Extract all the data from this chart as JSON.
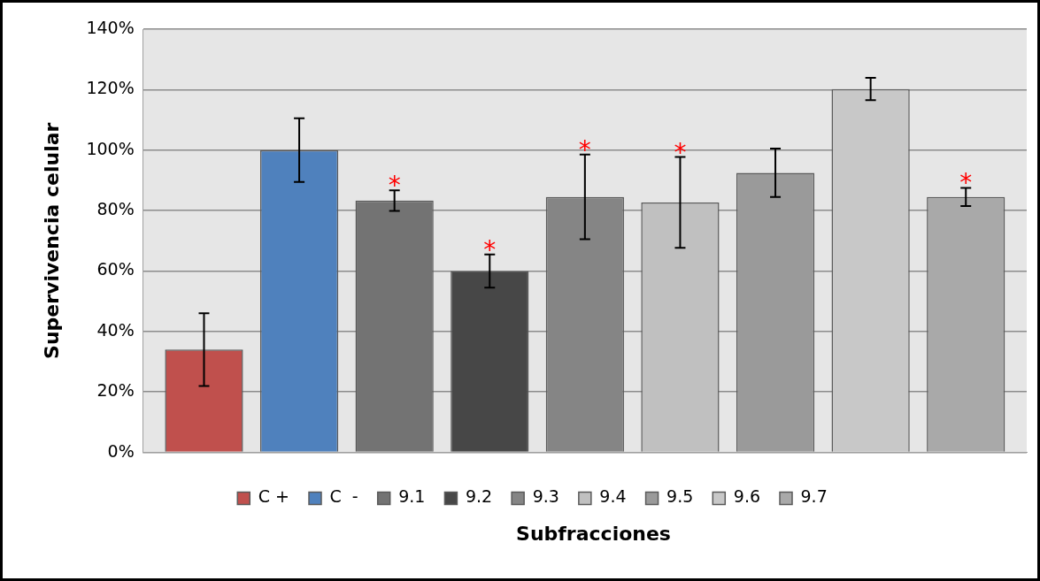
{
  "chart_data": {
    "type": "bar",
    "xlabel": "Subfracciones",
    "ylabel": "Supervivencia celular",
    "categories": [
      null
    ],
    "series": [
      {
        "name": "C +",
        "color": "#c0504d",
        "values": [
          34
        ],
        "errors": [
          12
        ]
      },
      {
        "name": "C  -",
        "color": "#4f81bd",
        "values": [
          100
        ],
        "errors": [
          10.5
        ]
      },
      {
        "name": "9.1",
        "color": "#737373",
        "values": [
          83.3
        ],
        "errors": [
          3.4
        ],
        "value_labels": [
          "*"
        ]
      },
      {
        "name": "9.2",
        "color": "#474747",
        "values": [
          60
        ],
        "errors": [
          5.5
        ],
        "value_labels": [
          "*"
        ]
      },
      {
        "name": "9.3",
        "color": "#858585",
        "values": [
          84.5
        ],
        "errors": [
          14
        ],
        "value_labels": [
          "*"
        ]
      },
      {
        "name": "9.4",
        "color": "#c0c0c0",
        "values": [
          82.7
        ],
        "errors": [
          15
        ],
        "value_labels": [
          "*"
        ]
      },
      {
        "name": "9.5",
        "color": "#9a9a9a",
        "values": [
          92.5
        ],
        "errors": [
          8
        ]
      },
      {
        "name": "9.6",
        "color": "#c8c8c8",
        "values": [
          120.2
        ],
        "errors": [
          3.7
        ]
      },
      {
        "name": "9.7",
        "color": "#a9a9a9",
        "values": [
          84.5
        ],
        "errors": [
          3
        ],
        "value_labels": [
          "*"
        ]
      }
    ],
    "ylim": [
      0,
      140
    ],
    "yticks": [
      {
        "value": 0,
        "label": "0%"
      },
      {
        "value": 20,
        "label": "20%"
      },
      {
        "value": 40,
        "label": "40%"
      },
      {
        "value": 60,
        "label": "60%"
      },
      {
        "value": 80,
        "label": "80%"
      },
      {
        "value": 100,
        "label": "100%"
      },
      {
        "value": 120,
        "label": "120%"
      },
      {
        "value": 140,
        "label": "140%"
      }
    ],
    "grid": "y",
    "legend": "bottom"
  }
}
